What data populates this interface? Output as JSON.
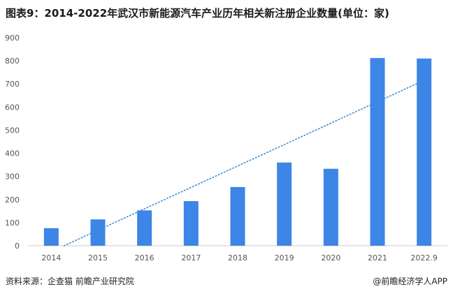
{
  "title": "图表9：2014-2022年武汉市新能源汽车产业历年相关新注册企业数量(单位：家)",
  "footer": {
    "source": "资料来源：企查猫 前瞻产业研究院",
    "brand": "@前瞻经济学人APP"
  },
  "colors": {
    "bar": "#3d85e6",
    "trend": "#3a8fd8",
    "axis": "#cccccc"
  },
  "chart_data": {
    "type": "bar",
    "categories": [
      "2014",
      "2015",
      "2016",
      "2017",
      "2018",
      "2019",
      "2020",
      "2021",
      "2022.9"
    ],
    "values": [
      76,
      114,
      153,
      193,
      254,
      360,
      333,
      812,
      810
    ],
    "ylim": [
      0,
      900
    ],
    "yticks": [
      0,
      100,
      200,
      300,
      400,
      500,
      600,
      700,
      800,
      900
    ],
    "trendline": {
      "type": "linear",
      "style": "dotted"
    },
    "grid": false,
    "legend": "none"
  }
}
